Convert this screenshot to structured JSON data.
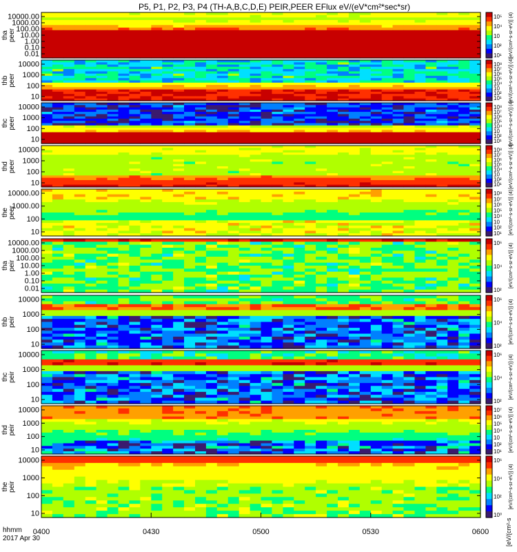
{
  "chart_data": {
    "type": "heatmap",
    "title": "P5, P1, P2, P3, P4 (TH-A,B,C,D,E) PEIR,PEER EFlux eV/(eV*cm²*sec*sr)",
    "x_axis": {
      "tick_labels": [
        "0400",
        "0430",
        "0500",
        "0530",
        "0600"
      ],
      "corner_label_1": "hhmm",
      "corner_label_2": "2017 Apr 30"
    },
    "colorbar_label_bottom": "[eV/(cm²-s",
    "colorbar_label_side": "[eV/(cm²-s-sr-eV)] (4)",
    "panels": [
      {
        "probe": "tha",
        "species": "peer",
        "y_ticks": [
          "10000.00",
          "1000.00",
          "100.00",
          "10.00",
          "1.00",
          "0.10",
          "0.01"
        ],
        "log_range": [
          -2,
          4.5
        ],
        "cb_ticks": [
          "10⁵",
          "10⁴",
          "10⁳",
          "10²",
          "10¹"
        ],
        "colormap_max": "1e8"
      },
      {
        "probe": "thb",
        "species": "peer",
        "y_ticks": [
          "10000",
          "1000",
          "100",
          "10"
        ],
        "log_range": [
          1,
          4.5
        ],
        "cb_ticks": [
          "10⁸",
          "10⁷",
          "10⁶",
          "10⁵",
          "10⁴",
          "10⁳",
          "10²",
          "10¹"
        ],
        "colormap_max": "1e8"
      },
      {
        "probe": "thc",
        "species": "peer",
        "y_ticks": [
          "10000",
          "1000",
          "100",
          "10"
        ],
        "log_range": [
          1,
          4.5
        ],
        "cb_ticks": [
          "10⁸",
          "10⁷",
          "10⁶",
          "10⁵",
          "10⁴",
          "10⁳",
          "10²",
          "10¹"
        ],
        "colormap_max": "1e8"
      },
      {
        "probe": "thd",
        "species": "peer",
        "y_ticks": [
          "10000",
          "1000",
          "100",
          "10"
        ],
        "log_range": [
          1,
          4.5
        ],
        "cb_ticks": [
          "10⁸",
          "10⁷",
          "10⁶",
          "10⁵",
          "10⁴",
          "10⁳",
          "10²",
          "10¹"
        ],
        "colormap_max": "1e8"
      },
      {
        "probe": "the",
        "species": "peer",
        "y_ticks": [
          "10000.00",
          "1000.00",
          "100",
          "10"
        ],
        "log_range": [
          0.8,
          4.5
        ],
        "cb_ticks": [
          "10⁸",
          "10⁷",
          "10⁶",
          "10⁵",
          "10⁴",
          "10⁳",
          "10²",
          "10¹"
        ],
        "colormap_max": "1e8"
      },
      {
        "probe": "tha",
        "species": "peir",
        "y_ticks": [
          "10000.00",
          "1000.00",
          "100.00",
          "10.00",
          "1.00",
          "0.10",
          "0.01"
        ],
        "log_range": [
          -2,
          4.5
        ],
        "cb_ticks": [
          "10⁶",
          "10⁴",
          "10²"
        ],
        "colormap_max": "1e7"
      },
      {
        "probe": "thb",
        "species": "peir",
        "y_ticks": [
          "10000",
          "1000",
          "100",
          "10"
        ],
        "log_range": [
          0.8,
          4.5
        ],
        "cb_ticks": [
          "10⁶",
          "10⁴",
          "10²"
        ],
        "colormap_max": "1e7"
      },
      {
        "probe": "thc",
        "species": "peir",
        "y_ticks": [
          "10000",
          "1000",
          "100",
          "10"
        ],
        "log_range": [
          0.8,
          4.5
        ],
        "cb_ticks": [
          "10⁶",
          "10⁴",
          "10²"
        ],
        "colormap_max": "1e7"
      },
      {
        "probe": "thd",
        "species": "peir",
        "y_ticks": [
          "10000",
          "1000",
          "100",
          "10"
        ],
        "log_range": [
          0.8,
          4.5
        ],
        "cb_ticks": [
          "10⁷",
          "10⁶",
          "10⁵",
          "10⁴",
          "10⁳",
          "10²",
          "10¹"
        ],
        "colormap_max": "1e7"
      },
      {
        "probe": "the",
        "species": "peir",
        "y_ticks": [
          "10000",
          "1000",
          "100",
          "10"
        ],
        "log_range": [
          0.8,
          4.5
        ],
        "cb_ticks": [
          "10⁶",
          "10⁴",
          "10²",
          "10⁰"
        ],
        "colormap_max": "1e7"
      }
    ],
    "colormap": [
      "#3b1b6e",
      "#0000ff",
      "#0080ff",
      "#00e0ff",
      "#00ff80",
      "#b0ff00",
      "#ffff00",
      "#ffa000",
      "#ff3000",
      "#c80000"
    ],
    "grid": false,
    "legend": "colorbars at right of each panel"
  }
}
